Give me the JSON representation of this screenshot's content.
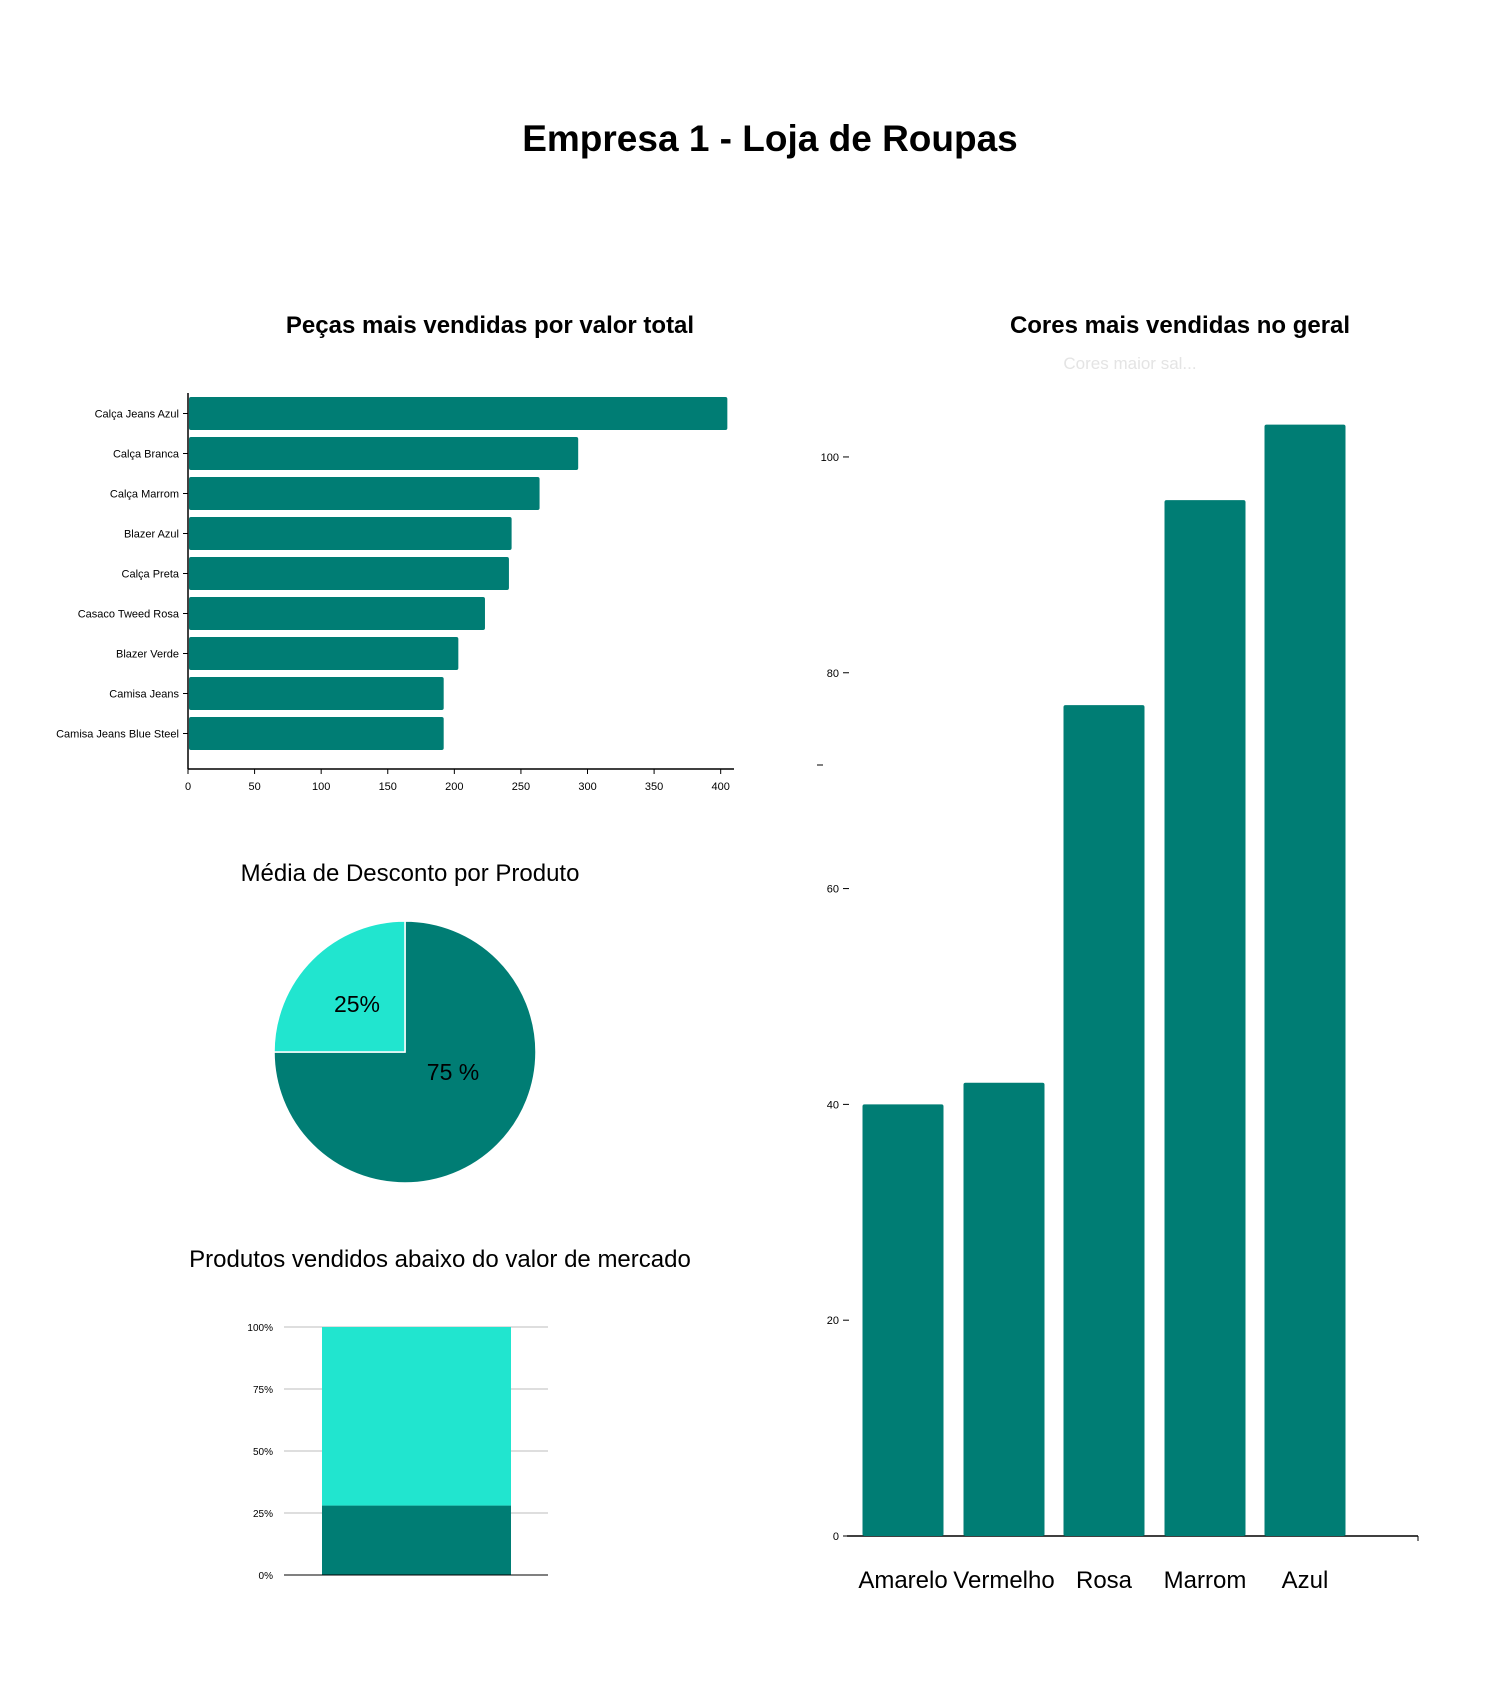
{
  "page": {
    "title": "Empresa 1 - Loja de Roupas"
  },
  "colors": {
    "teal": "#007d74",
    "turquoise": "#21e5cf",
    "grid": "#bdbdbd",
    "axis": "#000000"
  },
  "chart_data": [
    {
      "type": "bar",
      "orientation": "horizontal",
      "title": "Peças mais vendidas por valor total",
      "categories": [
        "Calça Jeans Azul",
        "Calça Branca",
        "Calça Marrom",
        "Blazer Azul",
        "Calça Preta",
        "Casaco Tweed Rosa",
        "Blazer Verde",
        "Camisa Jeans",
        "Camisa Jeans Blue Steel"
      ],
      "values": [
        405,
        293,
        264,
        243,
        241,
        223,
        203,
        192,
        192
      ],
      "xticks": [
        "0",
        "50",
        "100",
        "150",
        "200",
        "250",
        "300",
        "350",
        "400"
      ],
      "xlim": [
        0,
        410
      ],
      "grid": false
    },
    {
      "type": "pie",
      "title": "Média de Desconto por Produto",
      "slices": [
        {
          "value": 75,
          "label": "75 %",
          "color": "#007d74"
        },
        {
          "value": 25,
          "label": "25%",
          "color": "#21e5cf"
        }
      ]
    },
    {
      "type": "bar",
      "stacked": true,
      "title": "Produtos vendidos abaixo do valor de mercado",
      "series": [
        {
          "values": [
            28
          ],
          "color": "#007d74"
        },
        {
          "values": [
            72
          ],
          "color": "#21e5cf"
        }
      ],
      "yticks": [
        "0%",
        "25%",
        "50%",
        "75%",
        "100%"
      ],
      "ylim": [
        0,
        100
      ],
      "grid": true
    },
    {
      "type": "bar",
      "title": "Cores mais vendidas no geral",
      "subtitle": "Cores maior sal...",
      "categories": [
        "Amarelo",
        "Vermelho",
        "Rosa",
        "Marrom",
        "Azul"
      ],
      "values": [
        40,
        42,
        77,
        96,
        103
      ],
      "yticks": [
        "0",
        "20",
        "40",
        "60",
        "80",
        "100"
      ],
      "ylim": [
        0,
        105
      ],
      "grid": false
    }
  ]
}
